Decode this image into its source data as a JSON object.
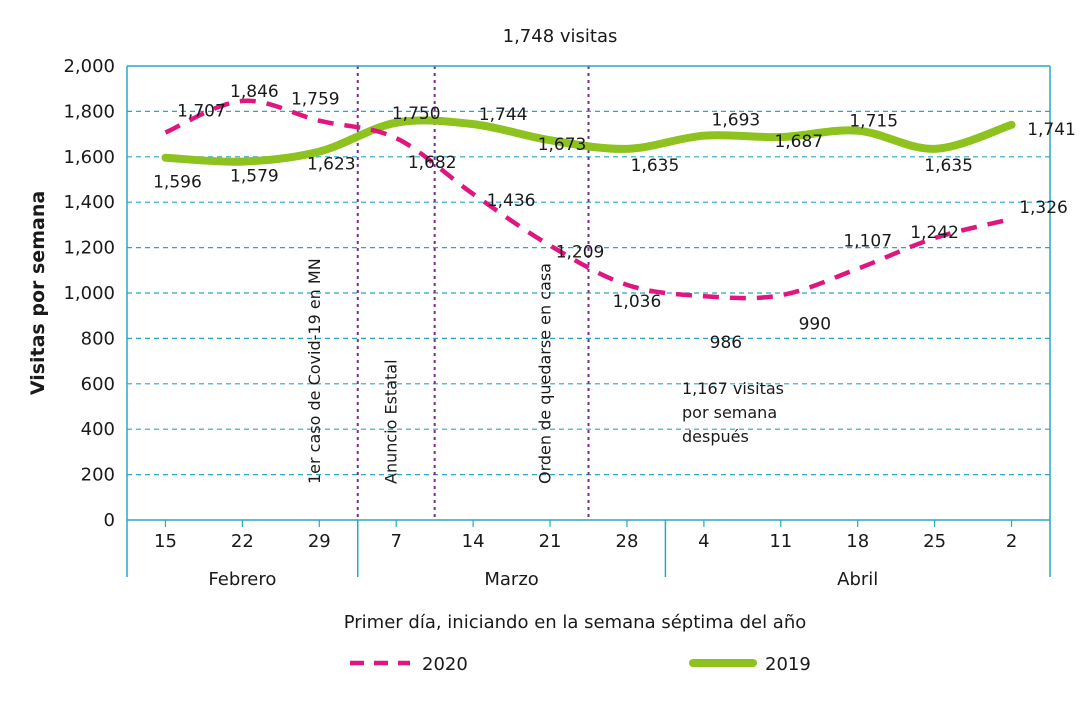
{
  "chart_data": {
    "type": "line",
    "title": "",
    "top_annotation": "1,748 visitas",
    "ylabel": "Visitas por semana",
    "xlabel": "Primer día, iniciando en la semana séptima del año",
    "ylim": [
      0,
      2000
    ],
    "yticks": [
      "0",
      "200",
      "400",
      "600",
      "800",
      "1,000",
      "1,200",
      "1,400",
      "1,600",
      "1,800",
      "2,000"
    ],
    "categories": [
      "15",
      "22",
      "29",
      "7",
      "14",
      "21",
      "28",
      "4",
      "11",
      "18",
      "25",
      "2"
    ],
    "months": [
      {
        "label": "Febrero",
        "start": 0,
        "end": 2
      },
      {
        "label": "Marzo",
        "start": 3,
        "end": 6
      },
      {
        "label": "Abril",
        "start": 7,
        "end": 11
      }
    ],
    "series": [
      {
        "name": "2020",
        "color": "#e0157f",
        "dashed": true,
        "values": [
          1707,
          1846,
          1759,
          1682,
          1436,
          1209,
          1036,
          986,
          990,
          1107,
          1242,
          1326
        ],
        "labels": [
          "1,707",
          "1,846",
          "1,759",
          "1,682",
          "1,436",
          "1,209",
          "1,036",
          "986",
          "990",
          "1,107",
          "1,242",
          "1,326"
        ]
      },
      {
        "name": "2019",
        "color": "#8dc21f",
        "dashed": false,
        "values": [
          1596,
          1579,
          1623,
          1750,
          1744,
          1673,
          1635,
          1693,
          1687,
          1715,
          1635,
          1741
        ],
        "labels": [
          "1,596",
          "1,579",
          "1,623",
          "1,750",
          "1,744",
          "1,673",
          "1,635",
          "1,693",
          "1,687",
          "1,715",
          "1,635",
          "1,741"
        ]
      }
    ],
    "event_lines": [
      {
        "index": 3,
        "label": "1er caso de Covid-19 en MN"
      },
      {
        "index": 4,
        "label": "Anuncio Estatal"
      },
      {
        "index": 6,
        "label": "Orden de quedarse en casa"
      }
    ],
    "note": [
      "1,167 visitas",
      "por semana",
      "después"
    ],
    "grid": true,
    "legend": "bottom"
  }
}
